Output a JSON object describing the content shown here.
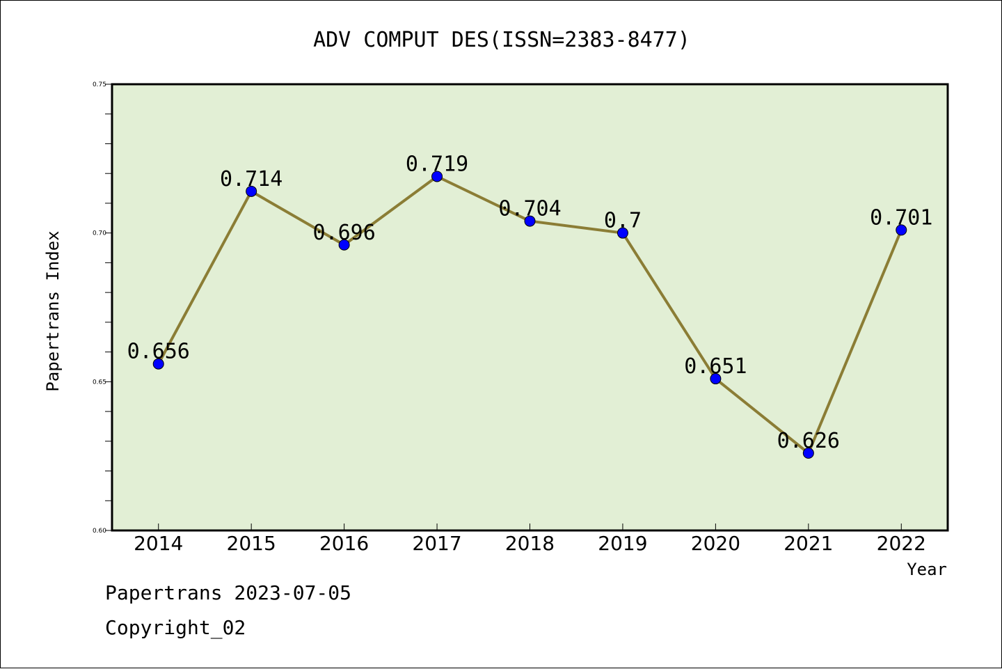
{
  "chart_data": {
    "type": "line",
    "title": "ADV COMPUT DES(ISSN=2383-8477)",
    "xlabel": "Year",
    "ylabel": "Papertrans Index",
    "categories": [
      "2014",
      "2015",
      "2016",
      "2017",
      "2018",
      "2019",
      "2020",
      "2021",
      "2022"
    ],
    "series": [
      {
        "values": [
          0.656,
          0.714,
          0.696,
          0.719,
          0.704,
          0.7,
          0.651,
          0.626,
          0.701
        ],
        "labels": [
          "0.656",
          "0.714",
          "0.696",
          "0.719",
          "0.704",
          "0.7",
          "0.651",
          "0.626",
          "0.701"
        ]
      }
    ],
    "ylim": [
      0.6,
      0.75
    ],
    "yticks": [
      0.6,
      0.65,
      0.7,
      0.75
    ],
    "ytick_labels": [
      "0.60",
      "0.65",
      "0.70",
      "0.75"
    ],
    "grid": false,
    "colors": {
      "plot_background": "#e2efd5",
      "line": "#8b7d35",
      "marker": "#0000ff"
    }
  },
  "footer": {
    "line1": "Papertrans 2023-07-05",
    "line2": "Copyright_02"
  }
}
